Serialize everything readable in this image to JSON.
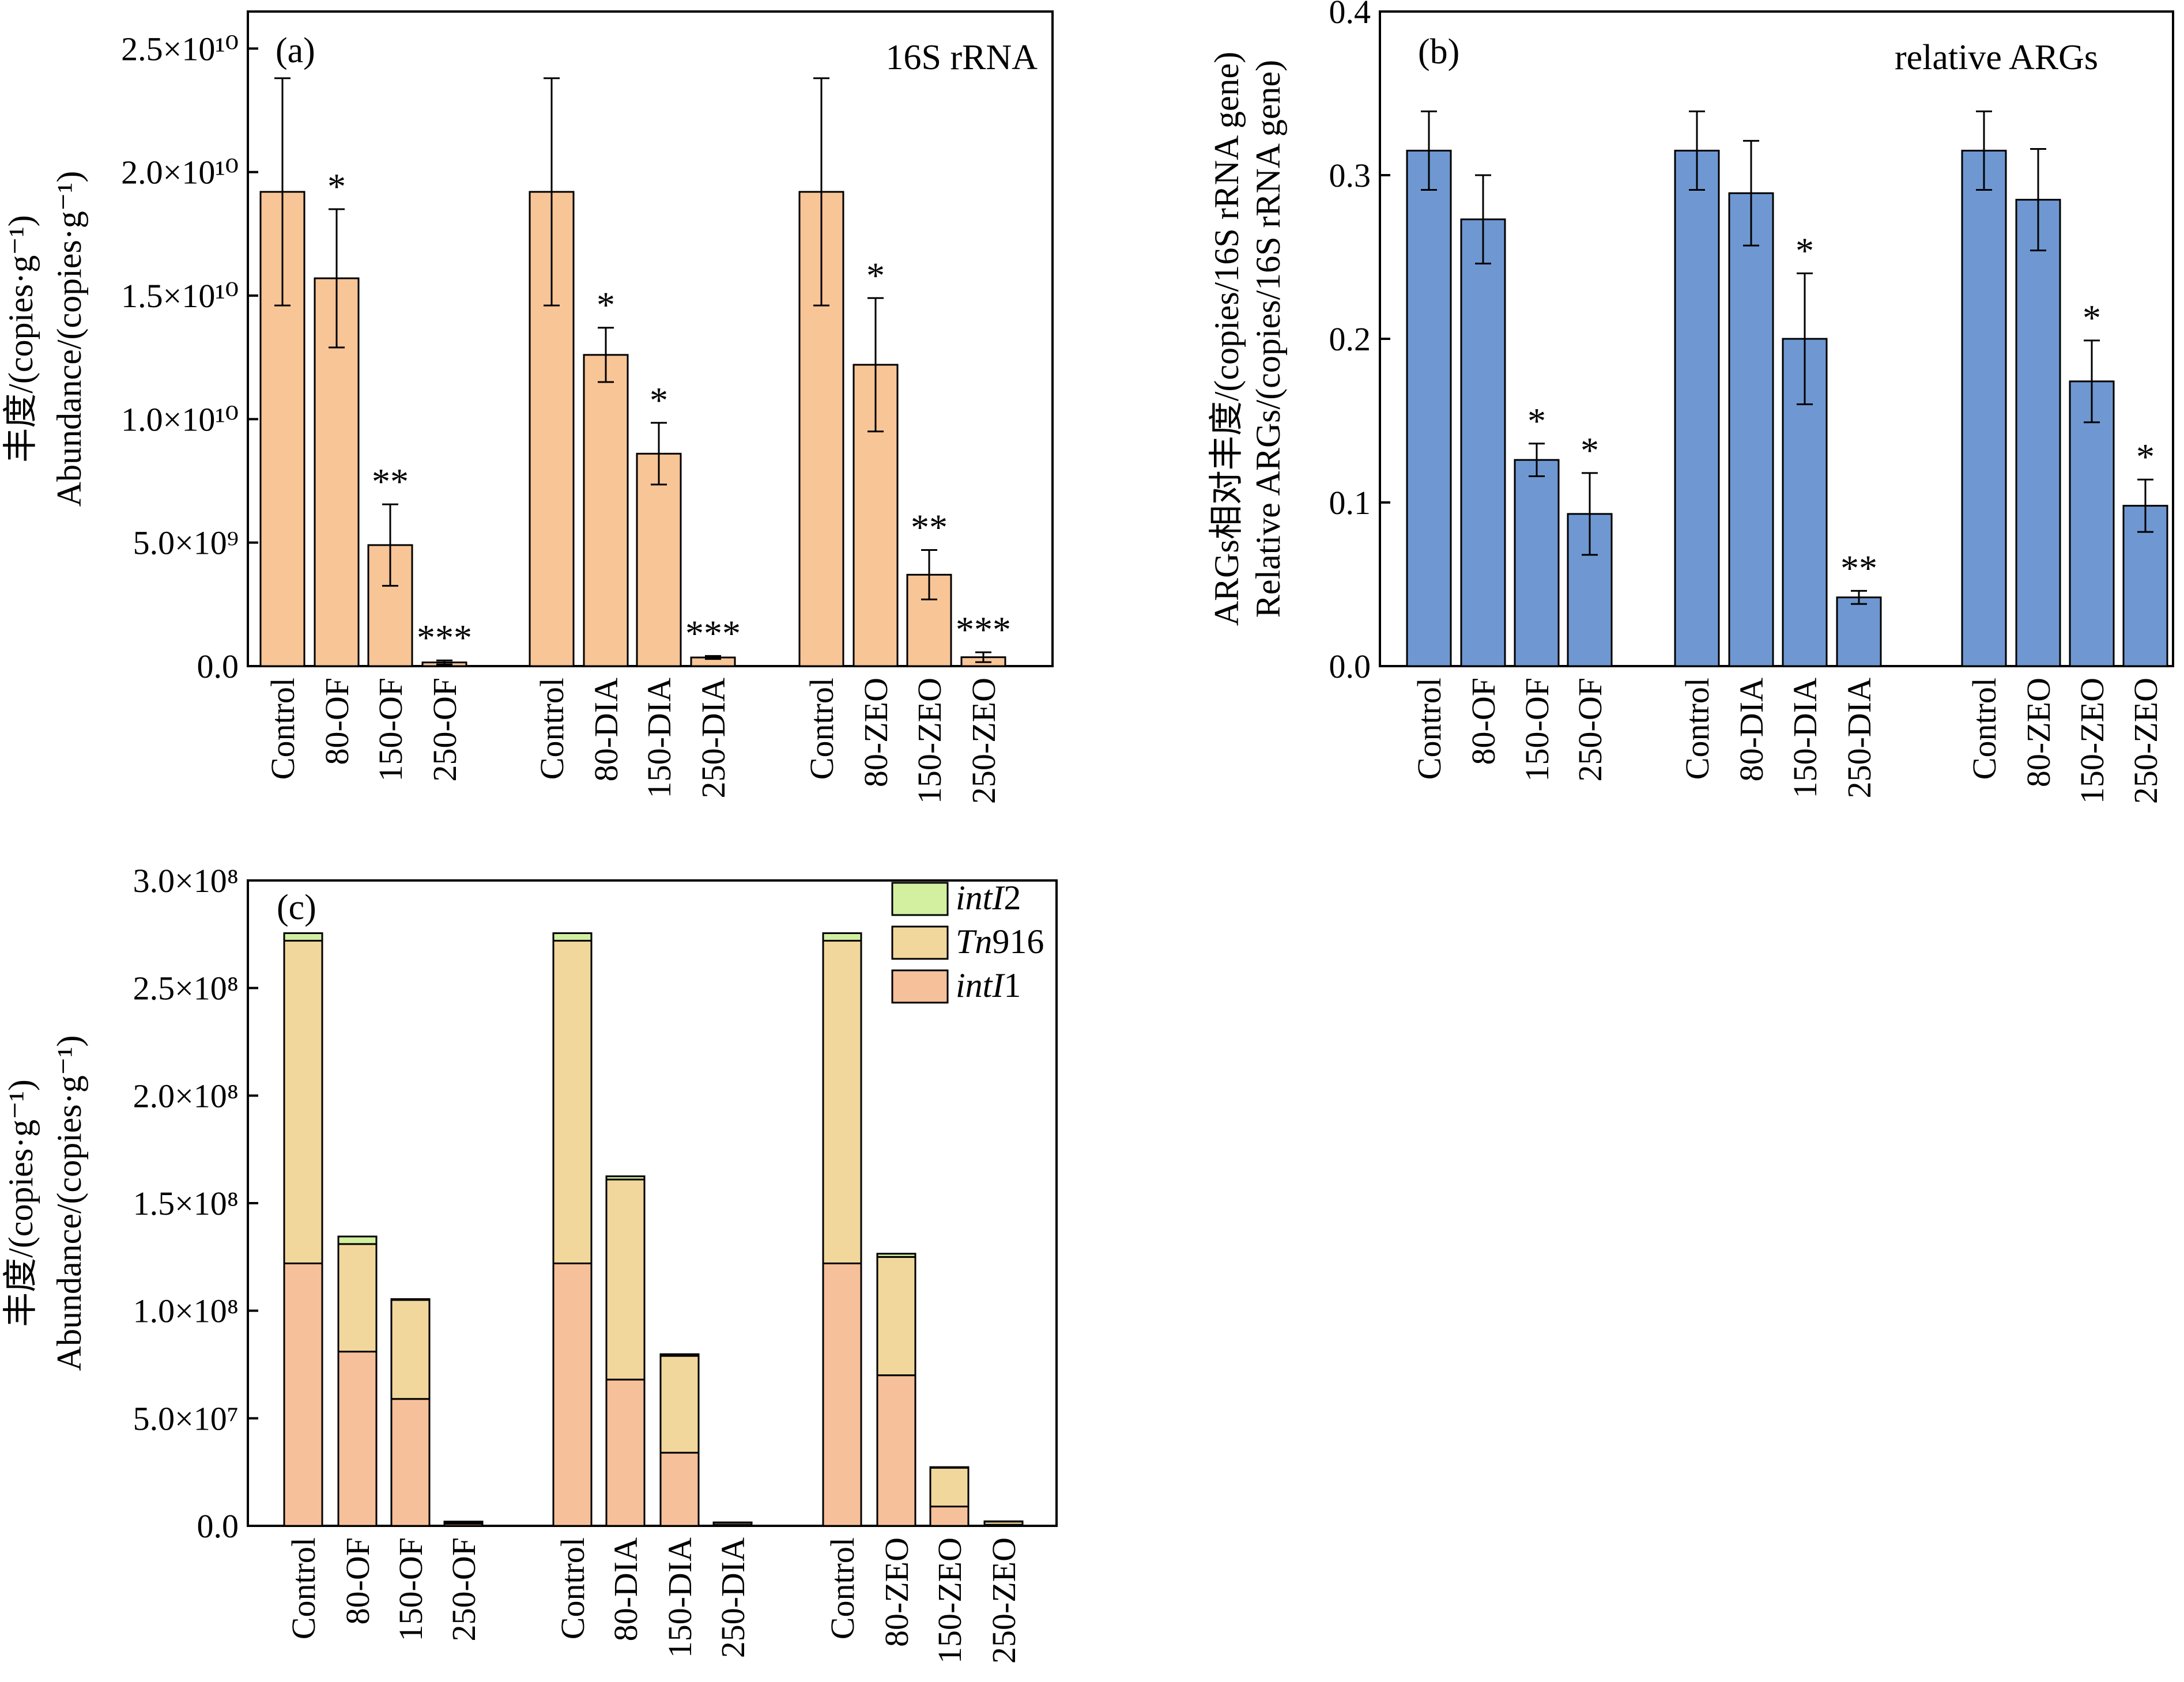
{
  "chart_data": [
    {
      "id": "a",
      "type": "bar",
      "panel_label": "(a)",
      "title": "16S rRNA",
      "ylabel_cn": "丰度/(copies·g⁻¹)",
      "ylabel_en": "Abundance/(copies·g⁻¹)",
      "ylim": [
        0,
        26500000000.0
      ],
      "y_ticks": [
        {
          "value": 0,
          "label": "0.0"
        },
        {
          "value": 5000000000.0,
          "label": "5.0×10⁹"
        },
        {
          "value": 10000000000.0,
          "label": "1.0×10¹⁰"
        },
        {
          "value": 15000000000.0,
          "label": "1.5×10¹⁰"
        },
        {
          "value": 20000000000.0,
          "label": "2.0×10¹⁰"
        },
        {
          "value": 25000000000.0,
          "label": "2.5×10¹⁰"
        }
      ],
      "bar_color": "#F8C597",
      "groups": [
        {
          "categories": [
            "Control",
            "80-OF",
            "150-OF",
            "250-OF"
          ],
          "values": [
            19200000000.0,
            15700000000.0,
            4900000000.0,
            150000000.0
          ],
          "errors": [
            4600000000.0,
            2800000000.0,
            1650000000.0,
            80000000.0
          ],
          "sig": [
            "",
            "*",
            "**",
            "***"
          ]
        },
        {
          "categories": [
            "Control",
            "80-DIA",
            "150-DIA",
            "250-DIA"
          ],
          "values": [
            19200000000.0,
            12600000000.0,
            8600000000.0,
            350000000.0
          ],
          "errors": [
            4600000000.0,
            1100000000.0,
            1250000000.0,
            60000000.0
          ],
          "sig": [
            "",
            "*",
            "*",
            "***"
          ]
        },
        {
          "categories": [
            "Control",
            "80-ZEO",
            "150-ZEO",
            "250-ZEO"
          ],
          "values": [
            19200000000.0,
            12200000000.0,
            3700000000.0,
            360000000.0
          ],
          "errors": [
            4600000000.0,
            2700000000.0,
            1000000000.0,
            200000000.0
          ],
          "sig": [
            "",
            "*",
            "**",
            "***"
          ]
        }
      ]
    },
    {
      "id": "b",
      "type": "bar",
      "panel_label": "(b)",
      "title": "relative ARGs",
      "ylabel_cn": "ARGs相对丰度/(copies/16S rRNA gene)",
      "ylabel_en": "Relative ARGs/(copies/16S rRNA gene)",
      "ylim": [
        0,
        0.4
      ],
      "y_ticks": [
        {
          "value": 0,
          "label": "0.0"
        },
        {
          "value": 0.1,
          "label": "0.1"
        },
        {
          "value": 0.2,
          "label": "0.2"
        },
        {
          "value": 0.3,
          "label": "0.3"
        },
        {
          "value": 0.4,
          "label": "0.4"
        }
      ],
      "bar_color": "#6F98D2",
      "groups": [
        {
          "categories": [
            "Control",
            "80-OF",
            "150-OF",
            "250-OF"
          ],
          "values": [
            0.315,
            0.273,
            0.126,
            0.093
          ],
          "errors": [
            0.024,
            0.027,
            0.01,
            0.025
          ],
          "sig": [
            "",
            "",
            "*",
            "*"
          ]
        },
        {
          "categories": [
            "Control",
            "80-DIA",
            "150-DIA",
            "250-DIA"
          ],
          "values": [
            0.315,
            0.289,
            0.2,
            0.042
          ],
          "errors": [
            0.024,
            0.032,
            0.04,
            0.004
          ],
          "sig": [
            "",
            "",
            "*",
            "**"
          ]
        },
        {
          "categories": [
            "Control",
            "80-ZEO",
            "150-ZEO",
            "250-ZEO"
          ],
          "values": [
            0.315,
            0.285,
            0.174,
            0.098
          ],
          "errors": [
            0.024,
            0.031,
            0.025,
            0.016
          ],
          "sig": [
            "",
            "",
            "*",
            "*"
          ]
        }
      ]
    },
    {
      "id": "c",
      "type": "stacked-bar",
      "panel_label": "(c)",
      "ylabel_cn": "丰度/(copies·g⁻¹)",
      "ylabel_en": "Abundance/(copies·g⁻¹)",
      "ylim": [
        0,
        300000000.0
      ],
      "y_ticks": [
        {
          "value": 0,
          "label": "0.0"
        },
        {
          "value": 50000000.0,
          "label": "5.0×10⁷"
        },
        {
          "value": 100000000.0,
          "label": "1.0×10⁸"
        },
        {
          "value": 150000000.0,
          "label": "1.5×10⁸"
        },
        {
          "value": 200000000.0,
          "label": "2.0×10⁸"
        },
        {
          "value": 250000000.0,
          "label": "2.5×10⁸"
        },
        {
          "value": 300000000.0,
          "label": "3.0×10⁸"
        }
      ],
      "legend": [
        {
          "name": "intI2",
          "italic": "intI",
          "plain": "2",
          "italic_first": true,
          "color": "#D2F0A0"
        },
        {
          "name": "Tn916",
          "italic": "Tn",
          "plain": "916",
          "italic_first": true,
          "color": "#F2D79C"
        },
        {
          "name": "intI1",
          "italic": "intI",
          "plain": "1",
          "italic_first": true,
          "color": "#F6C09A"
        }
      ],
      "series_order": [
        "intI1",
        "Tn916",
        "intI2"
      ],
      "groups": [
        {
          "categories": [
            "Control",
            "80-OF",
            "150-OF",
            "250-OF"
          ],
          "stacks": [
            [
              122000000.0,
              150000000.0,
              3500000.0
            ],
            [
              81000000.0,
              50000000.0,
              3500000.0
            ],
            [
              59000000.0,
              46000000.0,
              400000.0
            ],
            [
              1000000.0,
              800000.0,
              200000.0
            ]
          ]
        },
        {
          "categories": [
            "Control",
            "80-DIA",
            "150-DIA",
            "250-DIA"
          ],
          "stacks": [
            [
              122000000.0,
              150000000.0,
              3500000.0
            ],
            [
              68000000.0,
              93000000.0,
              1500000.0
            ],
            [
              34000000.0,
              45000000.0,
              800000.0
            ],
            [
              500000.0,
              1000000.0,
              100000.0
            ]
          ]
        },
        {
          "categories": [
            "Control",
            "80-ZEO",
            "150-ZEO",
            "250-ZEO"
          ],
          "stacks": [
            [
              122000000.0,
              150000000.0,
              3500000.0
            ],
            [
              70000000.0,
              55000000.0,
              1500000.0
            ],
            [
              9000000.0,
              18000000.0,
              300000.0
            ],
            [
              500000.0,
              1500000.0,
              100000.0
            ]
          ]
        }
      ]
    }
  ]
}
